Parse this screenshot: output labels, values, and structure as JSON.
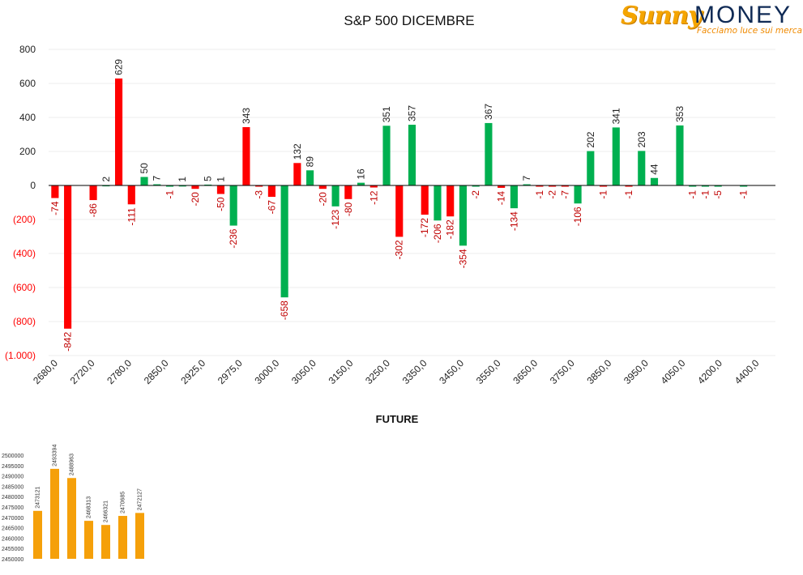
{
  "page": {
    "title": "S&P 500 DICEMBRE",
    "future_title": "FUTURE"
  },
  "logo": {
    "sunny": "Sunny",
    "money": "MONEY",
    "tagline": "Facciamo luce sui mercati"
  },
  "colors": {
    "positive": "#00b050",
    "negative": "#ff0000",
    "negative_label": "#c00000",
    "future_bar": "#f5a00a"
  },
  "chart_data": [
    {
      "type": "bar",
      "title": "S&P 500 DICEMBRE",
      "ylim": [
        -1000,
        800
      ],
      "y_ticks": [
        {
          "value": 800,
          "label": "800"
        },
        {
          "value": 600,
          "label": "600"
        },
        {
          "value": 400,
          "label": "400"
        },
        {
          "value": 200,
          "label": "200"
        },
        {
          "value": 0,
          "label": "0"
        },
        {
          "value": -200,
          "label": "(200)"
        },
        {
          "value": -400,
          "label": "(400)"
        },
        {
          "value": -600,
          "label": "(600)"
        },
        {
          "value": -800,
          "label": "(800)"
        },
        {
          "value": -1000,
          "label": "(1.000)"
        }
      ],
      "x_tick_labels": [
        "2680,0",
        "2720,0",
        "2780,0",
        "2850,0",
        "2925,0",
        "2975,0",
        "3000,0",
        "3050,0",
        "3150,0",
        "3250,0",
        "3350,0",
        "3450,0",
        "3550,0",
        "3650,0",
        "3750,0",
        "3850,0",
        "3950,0",
        "4050,0",
        "4200,0",
        "4400,0"
      ],
      "grid": true,
      "legend": "none",
      "bars": [
        {
          "slot": 0,
          "value": -74,
          "color": "negative"
        },
        {
          "slot": 1,
          "value": -842,
          "color": "negative"
        },
        {
          "slot": 3,
          "value": -86,
          "color": "negative"
        },
        {
          "slot": 4,
          "value": 2,
          "color": "positive"
        },
        {
          "slot": 5,
          "value": 629,
          "color": "negative"
        },
        {
          "slot": 6,
          "value": -111,
          "color": "negative"
        },
        {
          "slot": 7,
          "value": 50,
          "color": "positive"
        },
        {
          "slot": 8,
          "value": 7,
          "color": "positive"
        },
        {
          "slot": 9,
          "value": -1,
          "color": "positive"
        },
        {
          "slot": 10,
          "value": 1,
          "color": "positive"
        },
        {
          "slot": 11,
          "value": -20,
          "color": "negative"
        },
        {
          "slot": 12,
          "value": 5,
          "color": "positive"
        },
        {
          "slot": 13,
          "value": 1,
          "color": "positive"
        },
        {
          "slot": 13,
          "value": -50,
          "color": "negative"
        },
        {
          "slot": 14,
          "value": -236,
          "color": "positive"
        },
        {
          "slot": 15,
          "value": 343,
          "color": "negative"
        },
        {
          "slot": 16,
          "value": -3,
          "color": "negative"
        },
        {
          "slot": 17,
          "value": -67,
          "color": "negative"
        },
        {
          "slot": 18,
          "value": -658,
          "color": "positive"
        },
        {
          "slot": 19,
          "value": 132,
          "color": "negative"
        },
        {
          "slot": 20,
          "value": 89,
          "color": "positive"
        },
        {
          "slot": 21,
          "value": -20,
          "color": "negative"
        },
        {
          "slot": 22,
          "value": -123,
          "color": "positive"
        },
        {
          "slot": 23,
          "value": -80,
          "color": "negative"
        },
        {
          "slot": 24,
          "value": 16,
          "color": "positive"
        },
        {
          "slot": 25,
          "value": -12,
          "color": "negative"
        },
        {
          "slot": 26,
          "value": 351,
          "color": "positive"
        },
        {
          "slot": 27,
          "value": -302,
          "color": "negative"
        },
        {
          "slot": 28,
          "value": 357,
          "color": "positive"
        },
        {
          "slot": 29,
          "value": -172,
          "color": "negative"
        },
        {
          "slot": 30,
          "value": -206,
          "color": "positive"
        },
        {
          "slot": 31,
          "value": -182,
          "color": "negative"
        },
        {
          "slot": 32,
          "value": -354,
          "color": "positive"
        },
        {
          "slot": 33,
          "value": -2,
          "color": "positive"
        },
        {
          "slot": 34,
          "value": 367,
          "color": "positive"
        },
        {
          "slot": 35,
          "value": -14,
          "color": "negative"
        },
        {
          "slot": 36,
          "value": -134,
          "color": "positive"
        },
        {
          "slot": 37,
          "value": 7,
          "color": "positive"
        },
        {
          "slot": 38,
          "value": -1,
          "color": "negative"
        },
        {
          "slot": 39,
          "value": -2,
          "color": "negative"
        },
        {
          "slot": 40,
          "value": -7,
          "color": "negative"
        },
        {
          "slot": 41,
          "value": -106,
          "color": "positive"
        },
        {
          "slot": 42,
          "value": 202,
          "color": "positive"
        },
        {
          "slot": 43,
          "value": -1,
          "color": "negative"
        },
        {
          "slot": 44,
          "value": 341,
          "color": "positive"
        },
        {
          "slot": 45,
          "value": -1,
          "color": "negative"
        },
        {
          "slot": 46,
          "value": 203,
          "color": "positive"
        },
        {
          "slot": 47,
          "value": 44,
          "color": "positive"
        },
        {
          "slot": 49,
          "value": 353,
          "color": "positive"
        },
        {
          "slot": 50,
          "value": -1,
          "color": "positive"
        },
        {
          "slot": 51,
          "value": -1,
          "color": "positive"
        },
        {
          "slot": 52,
          "value": -5,
          "color": "positive"
        },
        {
          "slot": 54,
          "value": -1,
          "color": "positive"
        }
      ]
    },
    {
      "type": "bar",
      "title": "FUTURE",
      "ylim": [
        2450000,
        2500000
      ],
      "y_ticks": [
        {
          "value": 2500000,
          "label": "2500000"
        },
        {
          "value": 2495000,
          "label": "2495000"
        },
        {
          "value": 2490000,
          "label": "2490000"
        },
        {
          "value": 2485000,
          "label": "2485000"
        },
        {
          "value": 2480000,
          "label": "2480000"
        },
        {
          "value": 2475000,
          "label": "2475000"
        },
        {
          "value": 2470000,
          "label": "2470000"
        },
        {
          "value": 2465000,
          "label": "2465000"
        },
        {
          "value": 2460000,
          "label": "2460000"
        },
        {
          "value": 2455000,
          "label": "2455000"
        },
        {
          "value": 2450000,
          "label": "2450000"
        }
      ],
      "values": [
        2473121,
        2493394,
        2488963,
        2468313,
        2466321,
        2470685,
        2472127
      ],
      "labels": [
        "2473121",
        "2493394",
        "2488963",
        "2468313",
        "2466321",
        "2470685",
        "2472127"
      ],
      "legend": "none"
    }
  ]
}
